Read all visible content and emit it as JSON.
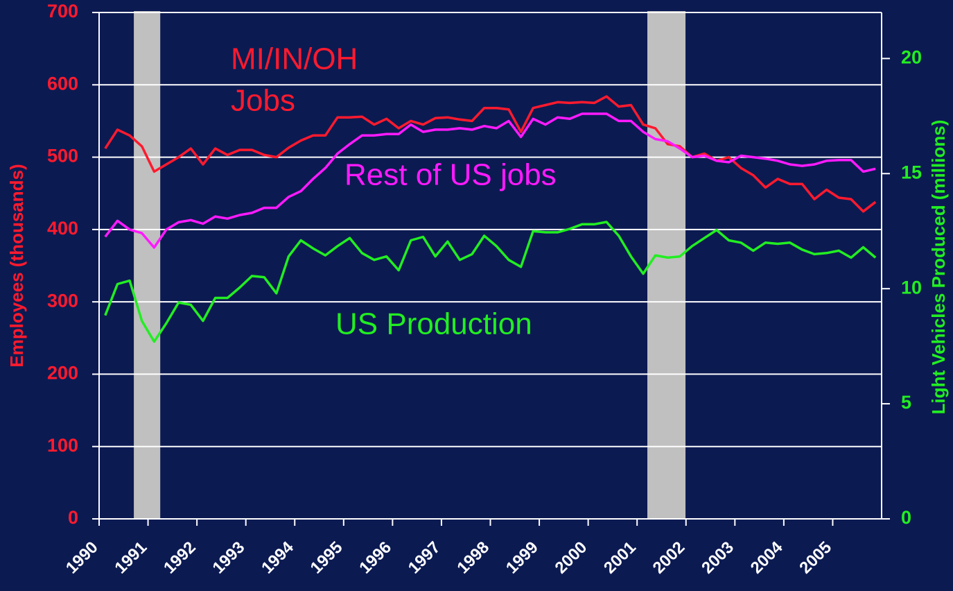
{
  "chart_data": {
    "type": "line",
    "x": [
      1990.125,
      1990.375,
      1990.625,
      1990.875,
      1991.125,
      1991.375,
      1991.625,
      1991.875,
      1992.125,
      1992.375,
      1992.625,
      1992.875,
      1993.125,
      1993.375,
      1993.625,
      1993.875,
      1994.125,
      1994.375,
      1994.625,
      1994.875,
      1995.125,
      1995.375,
      1995.625,
      1995.875,
      1996.125,
      1996.375,
      1996.625,
      1996.875,
      1997.125,
      1997.375,
      1997.625,
      1997.875,
      1998.125,
      1998.375,
      1998.625,
      1998.875,
      1999.125,
      1999.375,
      1999.625,
      1999.875,
      2000.125,
      2000.375,
      2000.625,
      2000.875,
      2001.125,
      2001.375,
      2001.625,
      2001.875,
      2002.125,
      2002.375,
      2002.625,
      2002.875,
      2003.125,
      2003.375,
      2003.625,
      2003.875,
      2004.125,
      2004.375,
      2004.625,
      2004.875,
      2005.125,
      2005.375,
      2005.625,
      2005.875
    ],
    "series": [
      {
        "color": "#ff1a2e",
        "values": [
          512,
          538,
          530,
          515,
          480,
          490,
          500,
          512,
          490,
          512,
          503,
          510,
          510,
          503,
          500,
          513,
          523,
          530,
          530,
          555,
          555,
          556,
          545,
          553,
          540,
          550,
          545,
          554,
          555,
          552,
          550,
          568,
          568,
          566,
          535,
          568,
          572,
          576,
          575,
          576,
          575,
          584,
          570,
          572,
          545,
          540,
          518,
          515,
          500,
          505,
          495,
          500,
          485,
          475,
          458,
          470,
          463,
          463,
          442,
          455,
          444,
          442,
          425,
          438
        ]
      },
      {
        "color": "#ff1aff",
        "values": [
          390,
          412,
          400,
          395,
          375,
          400,
          410,
          413,
          408,
          418,
          415,
          420,
          423,
          430,
          430,
          445,
          453,
          470,
          485,
          505,
          518,
          530,
          530,
          532,
          532,
          545,
          535,
          538,
          538,
          540,
          538,
          543,
          540,
          550,
          528,
          553,
          545,
          555,
          553,
          560,
          560,
          560,
          550,
          550,
          535,
          525,
          522,
          512,
          500,
          502,
          495,
          493,
          502,
          500,
          498,
          495,
          490,
          488,
          490,
          495,
          496,
          496,
          480,
          484
        ]
      },
      {
        "color": "#22ee22",
        "axis": "y2",
        "values": [
          8.84,
          10.2,
          10.35,
          8.6,
          7.7,
          8.5,
          9.4,
          9.3,
          8.6,
          9.6,
          9.6,
          10.05,
          10.55,
          10.5,
          9.8,
          11.4,
          12.1,
          11.75,
          11.45,
          11.85,
          12.2,
          11.55,
          11.25,
          11.4,
          10.8,
          12.1,
          12.25,
          11.4,
          12.05,
          11.25,
          11.5,
          12.3,
          11.85,
          11.25,
          10.95,
          12.5,
          12.45,
          12.45,
          12.6,
          12.8,
          12.8,
          12.9,
          12.3,
          11.4,
          10.65,
          11.45,
          11.35,
          11.4,
          11.85,
          12.2,
          12.55,
          12.1,
          12.0,
          11.65,
          12.0,
          11.95,
          12.0,
          11.7,
          11.5,
          11.55,
          11.65,
          11.35,
          11.8,
          11.35
        ]
      }
    ],
    "annotations": [
      {
        "text": "MI/IN/OH",
        "color": "#ff1a2e"
      },
      {
        "text": "Jobs",
        "color": "#ff1a2e"
      },
      {
        "text": "Rest of US jobs",
        "color": "#ff1aff"
      },
      {
        "text": "US Production",
        "color": "#22ee22"
      }
    ],
    "recessions": [
      [
        1990.71,
        1991.25
      ],
      [
        2001.21,
        2001.99
      ]
    ],
    "recession_color": "#c0c0c0",
    "y_label": "Employees (thousands)",
    "y2_label": "Light Vehicles Produced (millions)",
    "xlim": [
      1990,
      2006
    ],
    "xticks": [
      1990,
      1991,
      1992,
      1993,
      1994,
      1995,
      1996,
      1997,
      1998,
      1999,
      2000,
      2001,
      2002,
      2003,
      2004,
      2005
    ],
    "ylim": [
      0,
      700
    ],
    "yticks": [
      0,
      100,
      200,
      300,
      400,
      500,
      600,
      700
    ],
    "y2lim": [
      0,
      22
    ],
    "y2ticks": [
      0,
      5,
      10,
      15,
      20
    ],
    "grid": true
  }
}
